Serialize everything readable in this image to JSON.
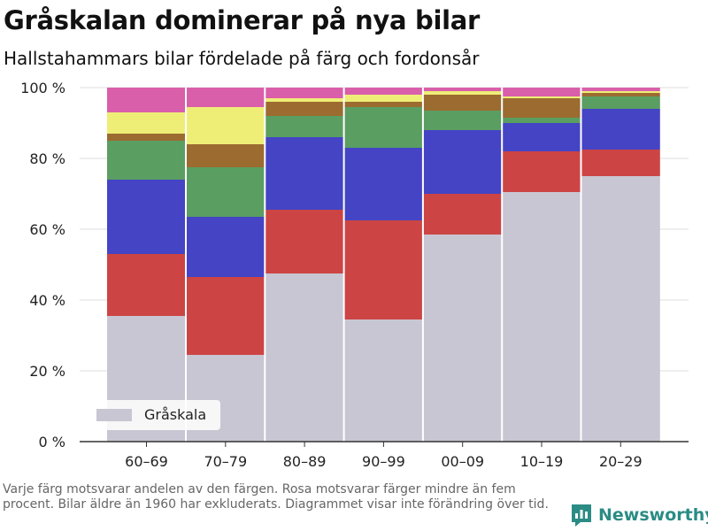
{
  "title": "Gråskalan dominerar på nya bilar",
  "subtitle": "Hallstahammars bilar fördelade på färg och fordonsår",
  "caption": "Varje färg motsvarar andelen av den färgen. Rosa motsvarar färger mindre än fem procent. Bilar äldre än 1960 har exkluderats. Diagrammet visar inte förändring över tid.",
  "brand": {
    "name": "Newsworthy",
    "icon": "newsworthy-logo-icon"
  },
  "chart_data": {
    "type": "bar",
    "stacked": true,
    "categories": [
      "60–69",
      "70–79",
      "80–89",
      "90–99",
      "00–09",
      "10–19",
      "20–29"
    ],
    "ylim": [
      0,
      100
    ],
    "yticks": [
      0,
      20,
      40,
      60,
      80,
      100
    ],
    "ytick_labels": [
      "0 %",
      "20 %",
      "40 %",
      "60 %",
      "80 %",
      "100 %"
    ],
    "grid": true,
    "legend": {
      "position": "bottom-left",
      "entries": [
        "Gråskala"
      ]
    },
    "series": [
      {
        "name": "Gråskala",
        "color": "#c8c6d2",
        "values": [
          35.5,
          24.5,
          47.5,
          34.5,
          58.5,
          70.5,
          75.0
        ]
      },
      {
        "color": "#cc4444",
        "values": [
          17.5,
          22.0,
          18.0,
          28.0,
          11.5,
          11.5,
          7.5
        ]
      },
      {
        "color": "#4444c4",
        "values": [
          21.0,
          17.0,
          20.5,
          20.5,
          18.0,
          8.0,
          11.5
        ]
      },
      {
        "color": "#5a9e62",
        "values": [
          11.0,
          14.0,
          6.0,
          11.5,
          5.5,
          1.5,
          3.5
        ]
      },
      {
        "color": "#9c6b30",
        "values": [
          2.0,
          6.5,
          4.0,
          1.5,
          4.5,
          5.5,
          1.0
        ]
      },
      {
        "color": "#eeee77",
        "values": [
          6.0,
          10.5,
          1.0,
          2.0,
          1.0,
          0.5,
          0.5
        ]
      },
      {
        "color": "#d95faa",
        "values": [
          7.0,
          5.5,
          3.0,
          2.0,
          1.0,
          2.5,
          1.0
        ]
      }
    ]
  }
}
